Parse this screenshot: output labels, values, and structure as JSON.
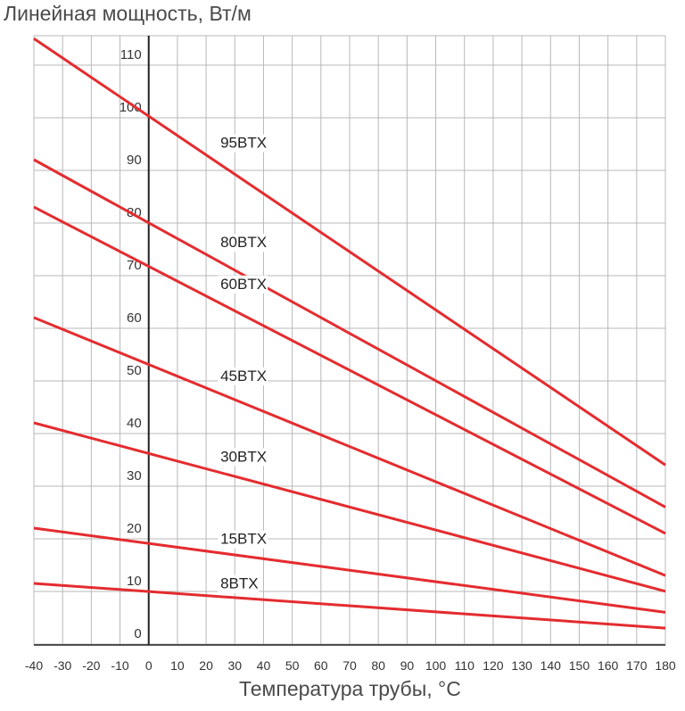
{
  "chart_data": {
    "type": "line",
    "title": "Линейная мощность, Вт/м",
    "xlabel": "Температура трубы, °C",
    "ylabel": "",
    "xlim": [
      -40,
      180
    ],
    "ylim": [
      0,
      115
    ],
    "x_ticks": [
      "-40",
      "-30",
      "-20",
      "-10",
      "0",
      "10",
      "20",
      "30",
      "40",
      "50",
      "60",
      "70",
      "80",
      "90",
      "100",
      "110",
      "120",
      "130",
      "140",
      "150",
      "160",
      "170",
      "180"
    ],
    "y_ticks": [
      "0",
      "10",
      "20",
      "30",
      "40",
      "50",
      "60",
      "70",
      "80",
      "90",
      "100",
      "110"
    ],
    "grid": true,
    "line_color": "#e42c2f",
    "series": [
      {
        "name": "95BTX",
        "x": [
          -40,
          180
        ],
        "y": [
          113,
          32
        ]
      },
      {
        "name": "80BTX",
        "x": [
          -40,
          180
        ],
        "y": [
          90,
          24
        ]
      },
      {
        "name": "60BTX",
        "x": [
          -40,
          180
        ],
        "y": [
          81,
          19
        ]
      },
      {
        "name": "45BTX",
        "x": [
          -40,
          180
        ],
        "y": [
          60,
          11
        ]
      },
      {
        "name": "30BTX",
        "x": [
          -40,
          180
        ],
        "y": [
          40,
          8
        ]
      },
      {
        "name": "15BTX",
        "x": [
          -40,
          180
        ],
        "y": [
          20,
          4
        ]
      },
      {
        "name": "8BTX",
        "x": [
          -40,
          180
        ],
        "y": [
          9.5,
          1
        ]
      }
    ]
  }
}
